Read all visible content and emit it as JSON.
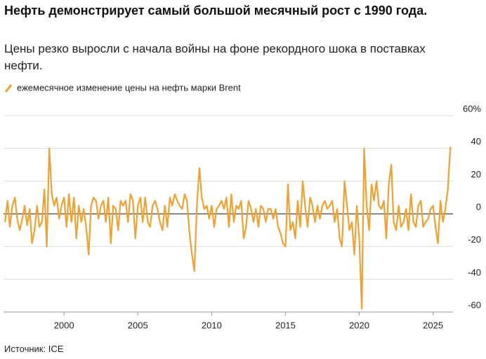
{
  "chart_data": {
    "type": "line",
    "title": "Нефть демонстрирует самый большой месячный рост с 1990 года.",
    "subtitle": "Цены резко выросли с начала войны на фоне рекордного шока в поставках нефти.",
    "source": "Источник: ICE",
    "x": [
      1996,
      1996.17,
      1996.33,
      1996.5,
      1996.67,
      1996.83,
      1997,
      1997.17,
      1997.33,
      1997.5,
      1997.67,
      1997.83,
      1998,
      1998.17,
      1998.33,
      1998.5,
      1998.67,
      1998.83,
      1999,
      1999.17,
      1999.33,
      1999.5,
      1999.67,
      1999.83,
      2000,
      2000.17,
      2000.33,
      2000.5,
      2000.67,
      2000.83,
      2001,
      2001.17,
      2001.33,
      2001.5,
      2001.67,
      2001.83,
      2002,
      2002.17,
      2002.33,
      2002.5,
      2002.67,
      2002.83,
      2003,
      2003.17,
      2003.33,
      2003.5,
      2003.67,
      2003.83,
      2004,
      2004.17,
      2004.33,
      2004.5,
      2004.67,
      2004.83,
      2005,
      2005.17,
      2005.33,
      2005.5,
      2005.67,
      2005.83,
      2006,
      2006.17,
      2006.33,
      2006.5,
      2006.67,
      2006.83,
      2007,
      2007.17,
      2007.33,
      2007.5,
      2007.67,
      2007.83,
      2008,
      2008.17,
      2008.33,
      2008.5,
      2008.67,
      2008.83,
      2009,
      2009.17,
      2009.33,
      2009.5,
      2009.67,
      2009.83,
      2010,
      2010.17,
      2010.33,
      2010.5,
      2010.67,
      2010.83,
      2011,
      2011.17,
      2011.33,
      2011.5,
      2011.67,
      2011.83,
      2012,
      2012.17,
      2012.33,
      2012.5,
      2012.67,
      2012.83,
      2013,
      2013.17,
      2013.33,
      2013.5,
      2013.67,
      2013.83,
      2014,
      2014.17,
      2014.33,
      2014.5,
      2014.67,
      2014.83,
      2015,
      2015.17,
      2015.33,
      2015.5,
      2015.67,
      2015.83,
      2016,
      2016.17,
      2016.33,
      2016.5,
      2016.67,
      2016.83,
      2017,
      2017.17,
      2017.33,
      2017.5,
      2017.67,
      2017.83,
      2018,
      2018.17,
      2018.33,
      2018.5,
      2018.67,
      2018.83,
      2019,
      2019.17,
      2019.33,
      2019.5,
      2019.67,
      2019.83,
      2020,
      2020.17,
      2020.33,
      2020.5,
      2020.67,
      2020.83,
      2021,
      2021.17,
      2021.33,
      2021.5,
      2021.67,
      2021.83,
      2022,
      2022.17,
      2022.33,
      2022.5,
      2022.67,
      2022.83,
      2023,
      2023.17,
      2023.33,
      2023.5,
      2023.67,
      2023.83,
      2024,
      2024.17,
      2024.33,
      2024.5,
      2024.67,
      2024.83,
      2025,
      2025.17,
      2025.33,
      2025.5,
      2025.67,
      2025.83,
      2026,
      2026.17
    ],
    "series": [
      {
        "name": "ежемесячное изменение цены на нефть марки Brent",
        "color": "#f2a02f",
        "values": [
          -5,
          8,
          -8,
          5,
          10,
          -3,
          -10,
          -3,
          5,
          -7,
          3,
          -18,
          -10,
          5,
          -8,
          -5,
          15,
          -20,
          40,
          12,
          5,
          10,
          -3,
          5,
          10,
          -8,
          12,
          -5,
          10,
          -15,
          5,
          -5,
          3,
          -8,
          -25,
          5,
          10,
          8,
          -3,
          5,
          8,
          -5,
          10,
          -18,
          5,
          3,
          -10,
          8,
          5,
          8,
          -5,
          12,
          8,
          -15,
          5,
          10,
          -5,
          10,
          -5,
          -8,
          5,
          8,
          3,
          -5,
          -10,
          5,
          -8,
          10,
          5,
          12,
          8,
          5,
          3,
          12,
          8,
          -12,
          -25,
          -35,
          5,
          28,
          10,
          3,
          5,
          -3,
          5,
          -8,
          3,
          5,
          8,
          3,
          10,
          -8,
          12,
          -5,
          5,
          3,
          8,
          -15,
          -8,
          8,
          3,
          -5,
          3,
          -8,
          5,
          3,
          -5,
          3,
          3,
          -3,
          3,
          -8,
          -12,
          -18,
          -20,
          18,
          -10,
          -5,
          -15,
          8,
          -8,
          20,
          5,
          -8,
          10,
          5,
          -5,
          5,
          -3,
          5,
          8,
          3,
          5,
          8,
          -5,
          3,
          -15,
          -20,
          20,
          5,
          -10,
          -5,
          -25,
          5,
          -15,
          -58,
          40,
          5,
          -10,
          18,
          8,
          20,
          5,
          3,
          8,
          -15,
          18,
          30,
          -5,
          -10,
          5,
          -8,
          -5,
          3,
          -10,
          12,
          -5,
          -8,
          5,
          8,
          -8,
          -5,
          -3,
          3,
          5,
          -8,
          -18,
          8,
          -5,
          3,
          15,
          41
        ]
      }
    ],
    "xlim": [
      1995.9,
      2026.35
    ],
    "xticks": [
      2000,
      2005,
      2010,
      2015,
      2020,
      2025
    ],
    "ylim": [
      -60,
      60
    ],
    "yticks": [
      {
        "value": 60,
        "label": "60%"
      },
      40,
      20,
      0,
      -20,
      -40,
      -60
    ],
    "grid": true
  }
}
